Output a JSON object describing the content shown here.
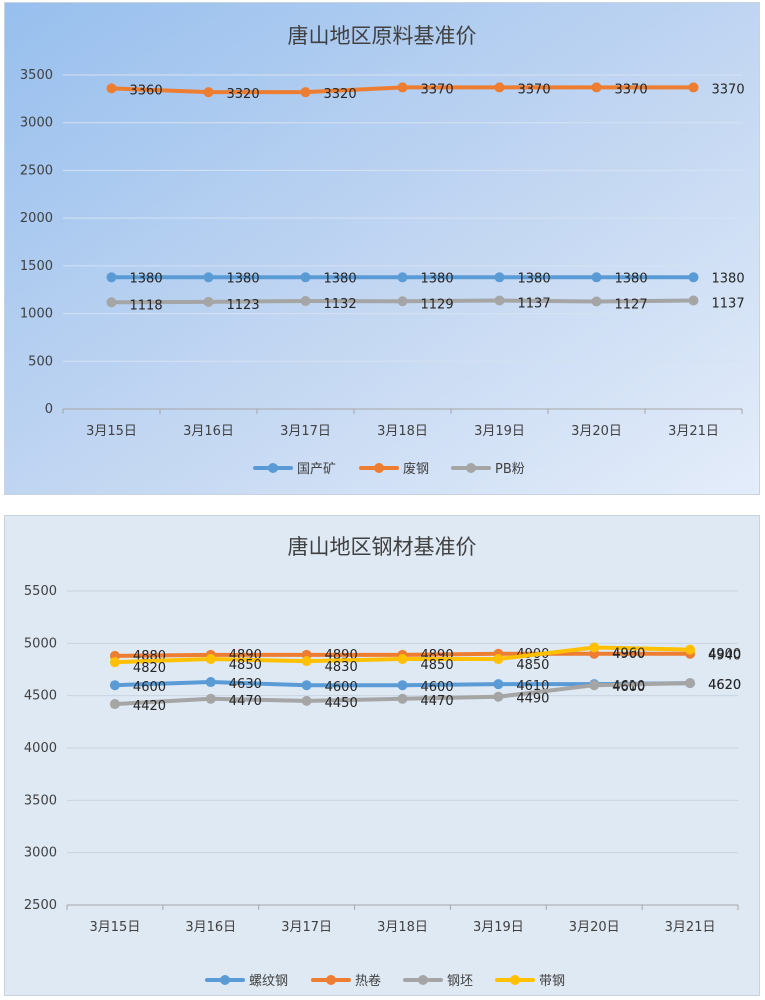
{
  "chart_data": [
    {
      "type": "line",
      "title": "唐山地区原料基准价",
      "categories": [
        "3月15日",
        "3月16日",
        "3月17日",
        "3月18日",
        "3月19日",
        "3月20日",
        "3月21日"
      ],
      "ylim": [
        0,
        3500
      ],
      "yticks": [
        0,
        500,
        1000,
        1500,
        2000,
        2500,
        3000,
        3500
      ],
      "grid": true,
      "legend": "bottom",
      "series": [
        {
          "name": "国产矿",
          "color": "#5b9bd5",
          "values": [
            1380,
            1380,
            1380,
            1380,
            1380,
            1380,
            1380
          ]
        },
        {
          "name": "废钢",
          "color": "#ed7d31",
          "values": [
            3360,
            3320,
            3320,
            3370,
            3370,
            3370,
            3370
          ]
        },
        {
          "name": "PB粉",
          "color": "#a5a5a5",
          "values": [
            1118,
            1123,
            1132,
            1129,
            1137,
            1127,
            1137
          ]
        }
      ]
    },
    {
      "type": "line",
      "title": "唐山地区钢材基准价",
      "categories": [
        "3月15日",
        "3月16日",
        "3月17日",
        "3月18日",
        "3月19日",
        "3月20日",
        "3月21日"
      ],
      "ylim": [
        2500,
        5500
      ],
      "yticks": [
        2500,
        3000,
        3500,
        4000,
        4500,
        5000,
        5500
      ],
      "grid": true,
      "legend": "bottom",
      "series": [
        {
          "name": "螺纹钢",
          "color": "#5b9bd5",
          "values": [
            4600,
            4630,
            4600,
            4600,
            4610,
            4610,
            4620
          ]
        },
        {
          "name": "热卷",
          "color": "#ed7d31",
          "values": [
            4880,
            4890,
            4890,
            4890,
            4900,
            4900,
            4900
          ]
        },
        {
          "name": "钢坯",
          "color": "#a5a5a5",
          "values": [
            4420,
            4470,
            4450,
            4470,
            4490,
            4600,
            4620
          ]
        },
        {
          "name": "带钢",
          "color": "#ffc000",
          "values": [
            4820,
            4850,
            4830,
            4850,
            4850,
            4960,
            4940
          ]
        }
      ]
    }
  ]
}
